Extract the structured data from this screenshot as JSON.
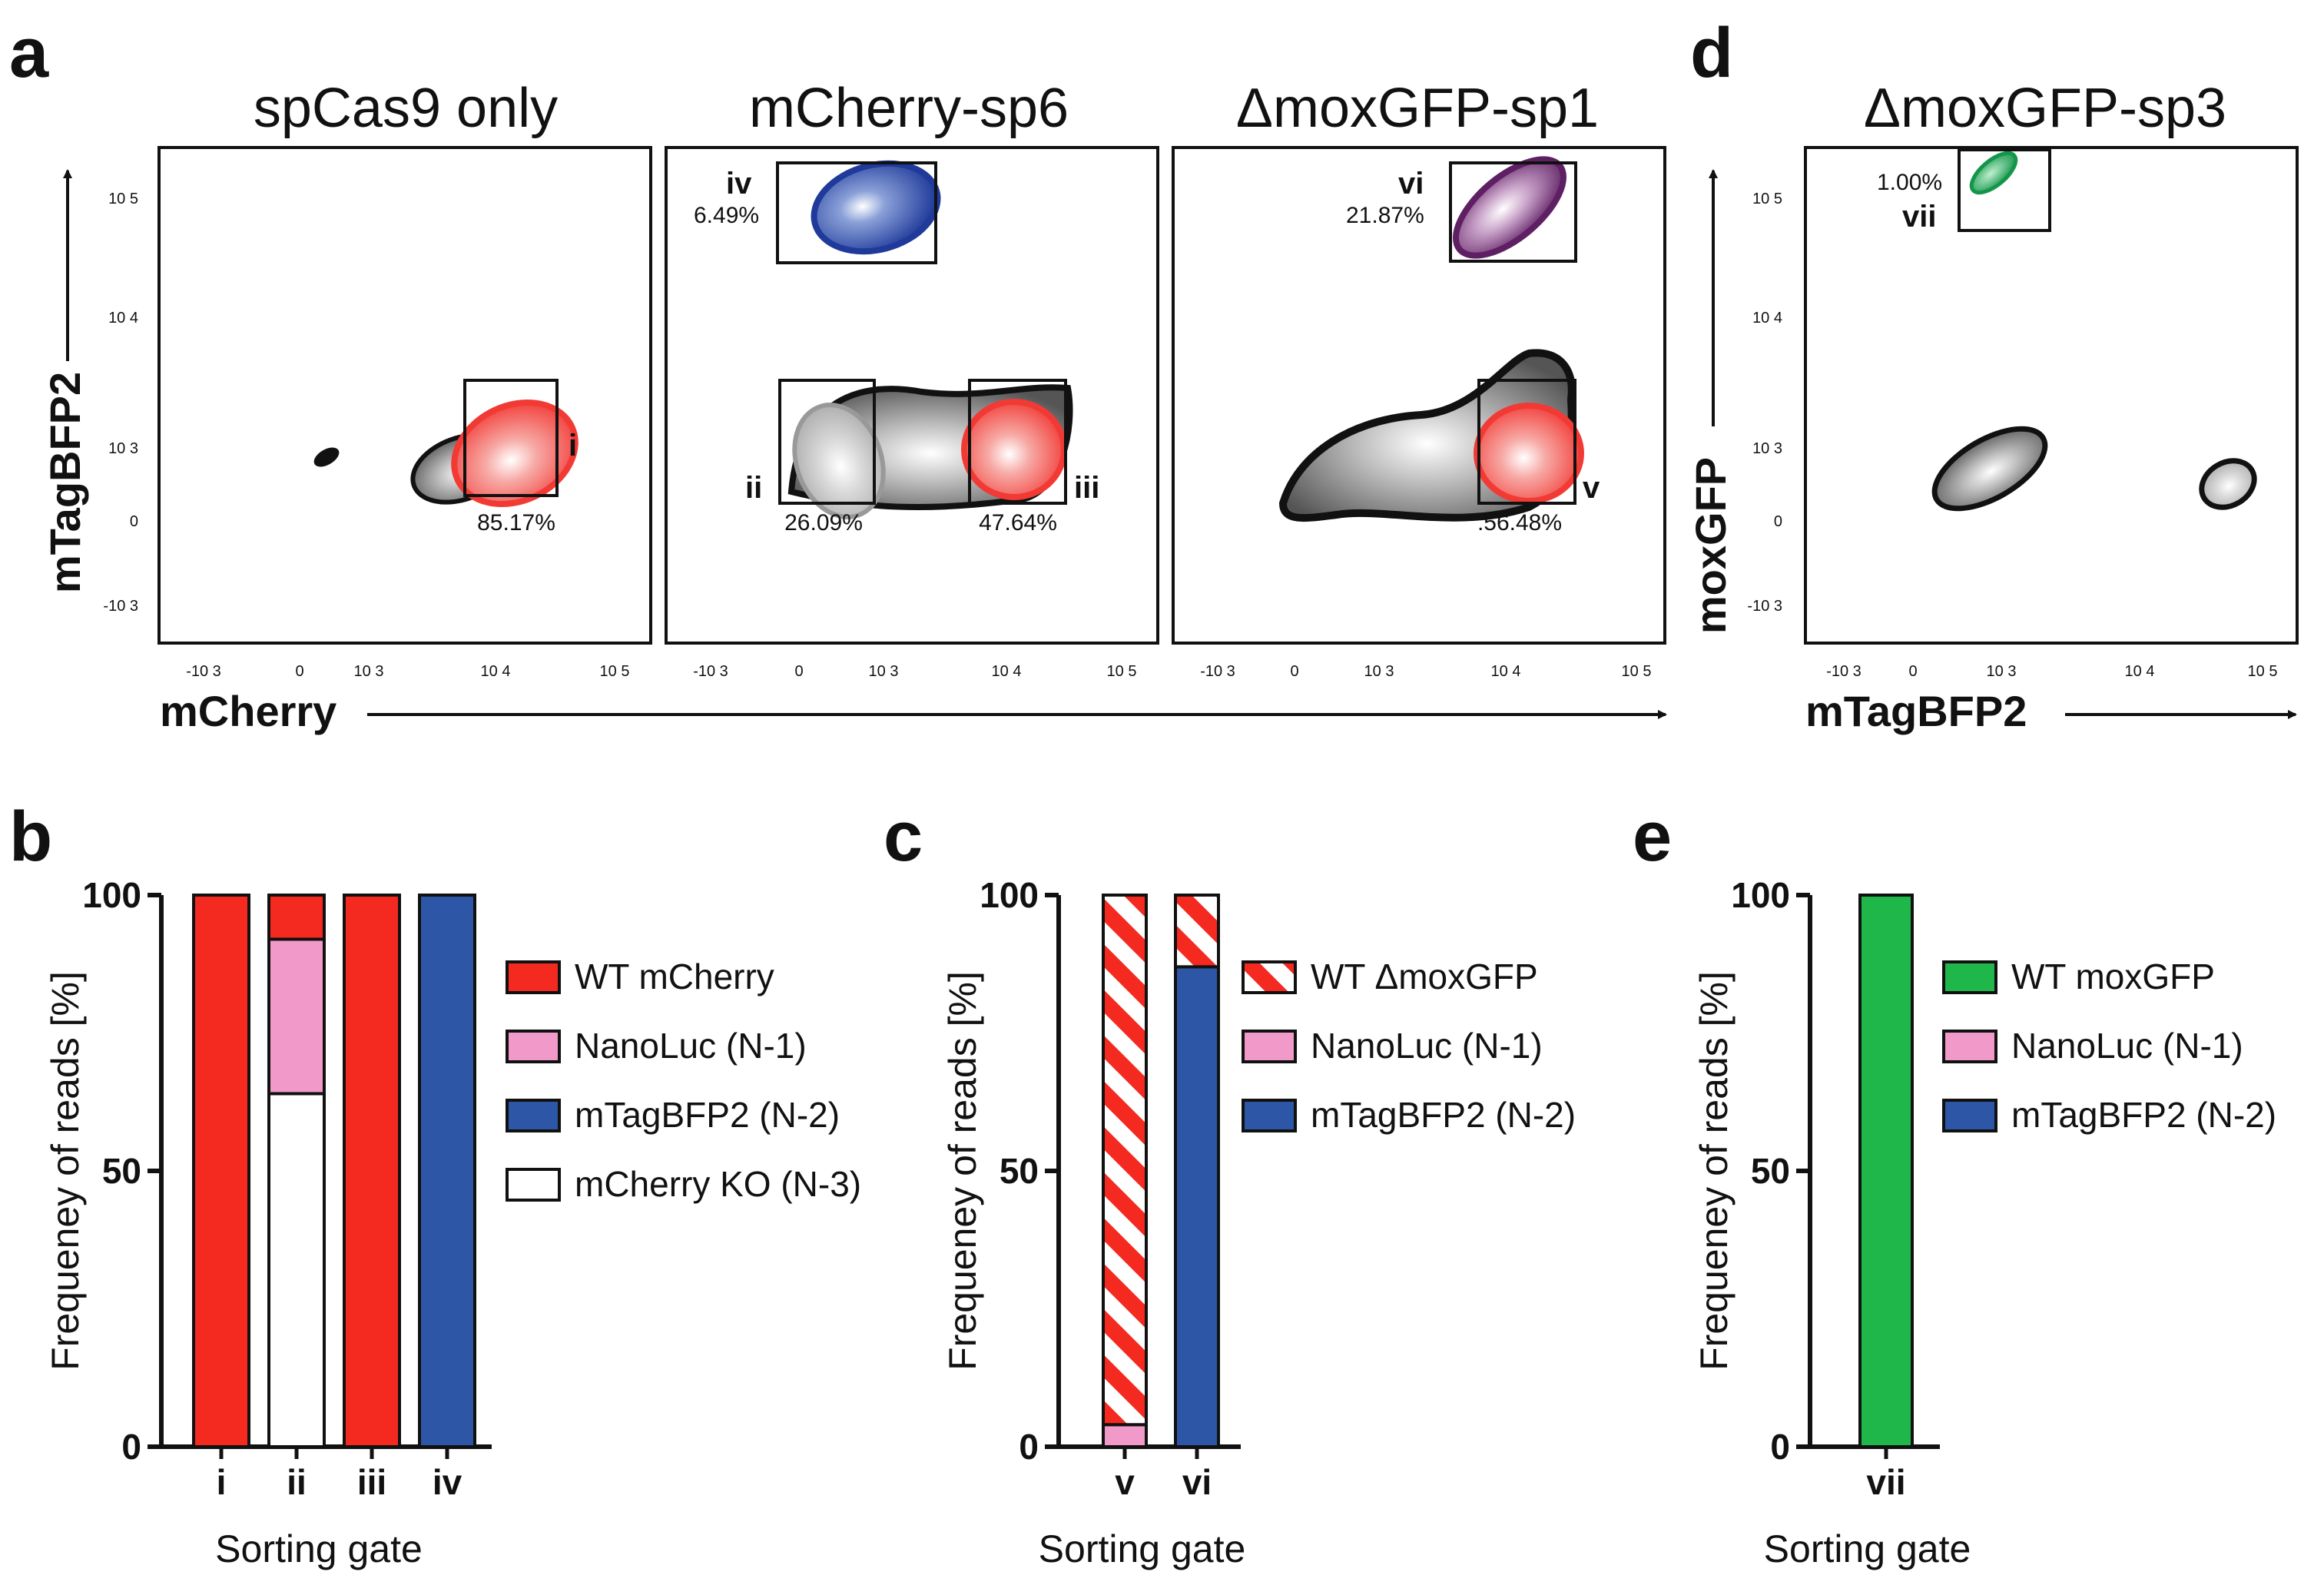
{
  "colors": {
    "wt_mcherry": "#f42a20",
    "nanoluc": "#f19ac9",
    "mtagbfp2": "#2d57a6",
    "mcherry_ko": "#ffffff",
    "wt_moxgfp": "#1fb64a",
    "gate_iv_blue": "#2a46a3",
    "gate_vi_purple": "#6f2a72",
    "gate_vii_green": "#1a9c55",
    "contour_red": "#f23a35",
    "contour_gray": "#9a9a9a"
  },
  "panel_letters": {
    "a": "a",
    "b": "b",
    "c": "c",
    "d": "d",
    "e": "e"
  },
  "flow": {
    "plots": [
      {
        "title": "spCas9 only",
        "gates": [
          {
            "label": "i",
            "percent": "85.17%"
          }
        ],
        "x_ticks": [
          "-10 3",
          "0",
          "10 3",
          "10 4",
          "10 5"
        ],
        "y_ticks": [
          "10 5",
          "10 4",
          "10 3",
          "0",
          "-10 3"
        ]
      },
      {
        "title": "mCherry-sp6",
        "gates": [
          {
            "label": "iv",
            "percent": "6.49%"
          },
          {
            "label": "ii",
            "percent": "26.09%"
          },
          {
            "label": "iii",
            "percent": "47.64%"
          }
        ],
        "x_ticks": [
          "-10 3",
          "0",
          "10 3",
          "10 4",
          "10 5"
        ]
      },
      {
        "title": "ΔmoxGFP-sp1",
        "gates": [
          {
            "label": "vi",
            "percent": "21.87%"
          },
          {
            "label": "v",
            "percent": ".56.48%"
          }
        ],
        "x_ticks": [
          "-10 3",
          "0",
          "10 3",
          "10 4",
          "10 5"
        ]
      },
      {
        "title": "ΔmoxGFP-sp3",
        "gates": [
          {
            "label": "vii",
            "percent": "1.00%"
          }
        ],
        "x_ticks": [
          "-10 3",
          "0",
          "10 3",
          "10 4",
          "10 5"
        ],
        "y_ticks": [
          "10 5",
          "10 4",
          "10 3",
          "0",
          "-10 3"
        ]
      }
    ],
    "axis_a_x": "mCherry",
    "axis_a_y": "mTagBFP2",
    "axis_d_x": "mTagBFP2",
    "axis_d_y": "moxGFP"
  },
  "chart_data": [
    {
      "type": "bar",
      "panel": "b",
      "categories": [
        "i",
        "ii",
        "iii",
        "iv"
      ],
      "stacked": true,
      "series": [
        {
          "name": "WT mCherry",
          "values": [
            100,
            8,
            100,
            0
          ]
        },
        {
          "name": "NanoLuc (N-1)",
          "values": [
            0,
            28,
            0,
            0
          ]
        },
        {
          "name": "mTagBFP2 (N-2)",
          "values": [
            0,
            0,
            0,
            100
          ]
        },
        {
          "name": "mCherry KO (N-3)",
          "values": [
            0,
            64,
            0,
            0
          ]
        }
      ],
      "stack_order_bottom_to_top": [
        "mCherry KO (N-3)",
        "mTagBFP2 (N-2)",
        "NanoLuc (N-1)",
        "WT mCherry"
      ],
      "xlabel": "Sorting gate",
      "ylabel": "Frequeney of reads [%]",
      "ylim": [
        0,
        100
      ],
      "yticks": [
        "0",
        "50",
        "100"
      ],
      "legend_position": "right"
    },
    {
      "type": "bar",
      "panel": "c",
      "categories": [
        "v",
        "vi"
      ],
      "stacked": true,
      "series": [
        {
          "name": "WT ΔmoxGFP",
          "values": [
            96,
            13
          ],
          "pattern": "diagonal-stripes"
        },
        {
          "name": "NanoLuc (N-1)",
          "values": [
            4,
            0
          ]
        },
        {
          "name": "mTagBFP2 (N-2)",
          "values": [
            0,
            87
          ]
        }
      ],
      "stack_order_bottom_to_top": [
        "NanoLuc (N-1)",
        "mTagBFP2 (N-2)",
        "WT ΔmoxGFP"
      ],
      "xlabel": "Sorting gate",
      "ylabel": "Frequeney of reads [%]",
      "ylim": [
        0,
        100
      ],
      "yticks": [
        "0",
        "50",
        "100"
      ],
      "legend_position": "right"
    },
    {
      "type": "bar",
      "panel": "e",
      "categories": [
        "vii"
      ],
      "stacked": true,
      "series": [
        {
          "name": "WT moxGFP",
          "values": [
            100
          ]
        },
        {
          "name": "NanoLuc (N-1)",
          "values": [
            0
          ]
        },
        {
          "name": "mTagBFP2 (N-2)",
          "values": [
            0
          ]
        }
      ],
      "stack_order_bottom_to_top": [
        "mTagBFP2 (N-2)",
        "NanoLuc (N-1)",
        "WT moxGFP"
      ],
      "xlabel": "Sorting gate",
      "ylabel": "Frequeney of reads [%]",
      "ylim": [
        0,
        100
      ],
      "yticks": [
        "0",
        "50",
        "100"
      ],
      "legend_position": "right"
    }
  ]
}
